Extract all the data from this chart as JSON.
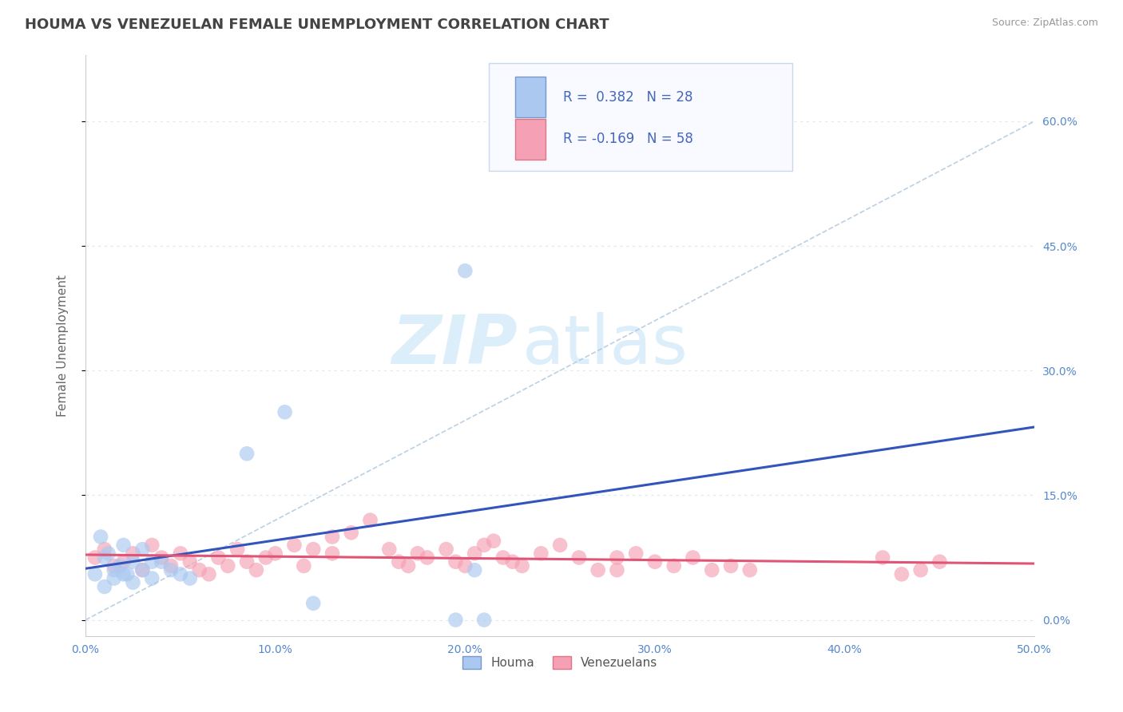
{
  "title": "HOUMA VS VENEZUELAN FEMALE UNEMPLOYMENT CORRELATION CHART",
  "source": "Source: ZipAtlas.com",
  "ylabel_label": "Female Unemployment",
  "xlim": [
    0.0,
    0.5
  ],
  "ylim": [
    -0.02,
    0.68
  ],
  "ytick_vals": [
    0.0,
    0.15,
    0.3,
    0.45,
    0.6
  ],
  "ytick_labels": [
    "0.0%",
    "15.0%",
    "30.0%",
    "45.0%",
    "60.0%"
  ],
  "xtick_vals": [
    0.0,
    0.1,
    0.2,
    0.3,
    0.4,
    0.5
  ],
  "xtick_labels": [
    "0.0%",
    "10.0%",
    "20.0%",
    "30.0%",
    "40.0%",
    "50.0%"
  ],
  "houma_R": 0.382,
  "houma_N": 28,
  "venezuelan_R": -0.169,
  "venezuelan_N": 58,
  "houma_color": "#aac8f0",
  "venezuelan_color": "#f5a0b5",
  "houma_line_color": "#3355bb",
  "venezuelan_line_color": "#e05575",
  "watermark_zip": "ZIP",
  "watermark_atlas": "atlas",
  "watermark_color": "#dceefa",
  "background_color": "#ffffff",
  "grid_color": "#dde8f5",
  "title_color": "#444444",
  "tick_label_color": "#5588cc",
  "houma_points_x": [
    0.005,
    0.01,
    0.015,
    0.02,
    0.025,
    0.008,
    0.012,
    0.018,
    0.022,
    0.03,
    0.035,
    0.015,
    0.025,
    0.01,
    0.03,
    0.04,
    0.02,
    0.035,
    0.045,
    0.05,
    0.055,
    0.085,
    0.105,
    0.12,
    0.195,
    0.2,
    0.205,
    0.21
  ],
  "houma_points_y": [
    0.055,
    0.075,
    0.06,
    0.09,
    0.07,
    0.1,
    0.08,
    0.065,
    0.055,
    0.085,
    0.07,
    0.05,
    0.045,
    0.04,
    0.06,
    0.07,
    0.055,
    0.05,
    0.06,
    0.055,
    0.05,
    0.2,
    0.25,
    0.02,
    0.0,
    0.42,
    0.06,
    0.0
  ],
  "venezuelan_points_x": [
    0.005,
    0.01,
    0.015,
    0.02,
    0.025,
    0.03,
    0.035,
    0.04,
    0.045,
    0.05,
    0.055,
    0.06,
    0.065,
    0.07,
    0.075,
    0.08,
    0.085,
    0.09,
    0.095,
    0.1,
    0.11,
    0.115,
    0.12,
    0.13,
    0.14,
    0.15,
    0.16,
    0.165,
    0.17,
    0.175,
    0.18,
    0.19,
    0.195,
    0.2,
    0.205,
    0.21,
    0.215,
    0.22,
    0.225,
    0.23,
    0.24,
    0.25,
    0.26,
    0.27,
    0.28,
    0.29,
    0.3,
    0.31,
    0.32,
    0.33,
    0.34,
    0.35,
    0.28,
    0.42,
    0.43,
    0.44,
    0.45,
    0.13
  ],
  "venezuelan_points_y": [
    0.075,
    0.085,
    0.065,
    0.07,
    0.08,
    0.06,
    0.09,
    0.075,
    0.065,
    0.08,
    0.07,
    0.06,
    0.055,
    0.075,
    0.065,
    0.085,
    0.07,
    0.06,
    0.075,
    0.08,
    0.09,
    0.065,
    0.085,
    0.1,
    0.105,
    0.12,
    0.085,
    0.07,
    0.065,
    0.08,
    0.075,
    0.085,
    0.07,
    0.065,
    0.08,
    0.09,
    0.095,
    0.075,
    0.07,
    0.065,
    0.08,
    0.09,
    0.075,
    0.06,
    0.075,
    0.08,
    0.07,
    0.065,
    0.075,
    0.06,
    0.065,
    0.06,
    0.06,
    0.075,
    0.055,
    0.06,
    0.07,
    0.08
  ],
  "diag_line_color": "#b0c8dd",
  "legend_R_color": "#4466bb",
  "legend_N_color": "#4466bb"
}
